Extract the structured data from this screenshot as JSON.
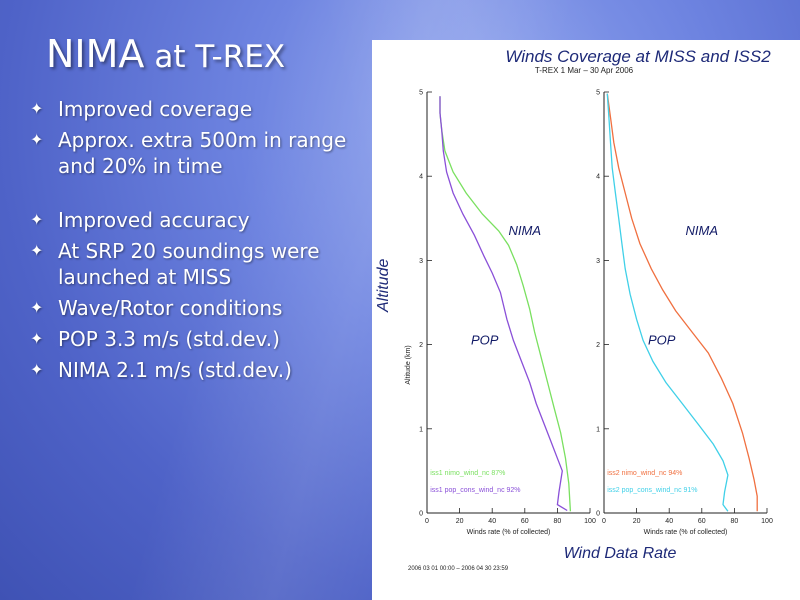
{
  "slide": {
    "title_main": "NIMA",
    "title_sub": "at T-REX",
    "bullets": [
      "Improved coverage",
      "Approx. extra 500m in range and 20% in time",
      "Improved accuracy",
      "At SRP 20 soundings were launched at MISS",
      "Wave/Rotor conditions",
      "POP 3.3 m/s (std.dev.)",
      "NIMA 2.1 m/s  (std.dev.)"
    ],
    "bullet_icon": "four-point-star-icon"
  },
  "chart_data": {
    "type": "line",
    "title": "Winds Coverage at MISS and ISS2",
    "subtitle": "T-REX  1 Mar – 30 Apr 2006",
    "ylabel_big": "Altitude",
    "ylabel_small": "Altitude (km)",
    "xlabel_big": "Wind Data Rate",
    "footer": "2006 03 01 00:00 – 2006 04 30 23:59",
    "panels": [
      {
        "xlabel": "Winds rate (% of collected)",
        "xlim": [
          0,
          100
        ],
        "ylim": [
          0,
          5
        ],
        "xticks": [
          "0",
          "20",
          "40",
          "60",
          "80",
          "100"
        ],
        "yticks": [
          "0",
          "1",
          "2",
          "3",
          "4",
          "5"
        ],
        "annotations": [
          "NIMA",
          "POP"
        ],
        "series": [
          {
            "name": "iss1 nimo_wind_nc  87%",
            "color": "#7ae060",
            "points": [
              [
                8,
                4.95
              ],
              [
                8,
                4.75
              ],
              [
                9,
                4.55
              ],
              [
                11,
                4.3
              ],
              [
                16,
                4.05
              ],
              [
                24,
                3.8
              ],
              [
                34,
                3.55
              ],
              [
                44,
                3.35
              ],
              [
                50,
                3.18
              ],
              [
                55,
                2.95
              ],
              [
                59,
                2.7
              ],
              [
                63,
                2.42
              ],
              [
                66,
                2.15
              ],
              [
                70,
                1.85
              ],
              [
                74,
                1.55
              ],
              [
                78,
                1.25
              ],
              [
                82,
                0.95
              ],
              [
                85,
                0.65
              ],
              [
                87,
                0.35
              ],
              [
                88,
                0.02
              ]
            ]
          },
          {
            "name": "iss1 pop_cons_wind_nc  92%",
            "color": "#8a50d8",
            "points": [
              [
                8,
                4.95
              ],
              [
                8,
                4.75
              ],
              [
                9,
                4.55
              ],
              [
                10,
                4.3
              ],
              [
                12,
                4.05
              ],
              [
                16,
                3.8
              ],
              [
                22,
                3.55
              ],
              [
                29,
                3.3
              ],
              [
                35,
                3.05
              ],
              [
                40,
                2.85
              ],
              [
                45,
                2.62
              ],
              [
                49,
                2.3
              ],
              [
                53,
                2.05
              ],
              [
                58,
                1.8
              ],
              [
                63,
                1.55
              ],
              [
                67,
                1.3
              ],
              [
                72,
                1.05
              ],
              [
                76,
                0.85
              ],
              [
                80,
                0.65
              ],
              [
                83,
                0.5
              ],
              [
                81,
                0.25
              ],
              [
                80,
                0.1
              ],
              [
                86,
                0.03
              ]
            ]
          }
        ]
      },
      {
        "xlabel": "Winds rate (% of collected)",
        "xlim": [
          0,
          100
        ],
        "ylim": [
          0,
          5
        ],
        "xticks": [
          "0",
          "20",
          "40",
          "60",
          "80",
          "100"
        ],
        "yticks": [
          "0",
          "1",
          "2",
          "3",
          "4",
          "5"
        ],
        "annotations": [
          "NIMA",
          "POP"
        ],
        "series": [
          {
            "name": "iss2 nimo_wind_nc  94%",
            "color": "#f07040",
            "points": [
              [
                2,
                4.98
              ],
              [
                4,
                4.7
              ],
              [
                6,
                4.4
              ],
              [
                9,
                4.1
              ],
              [
                13,
                3.8
              ],
              [
                17,
                3.5
              ],
              [
                22,
                3.2
              ],
              [
                29,
                2.9
              ],
              [
                36,
                2.65
              ],
              [
                44,
                2.4
              ],
              [
                54,
                2.15
              ],
              [
                64,
                1.9
              ],
              [
                72,
                1.6
              ],
              [
                79,
                1.3
              ],
              [
                85,
                0.95
              ],
              [
                89,
                0.65
              ],
              [
                92,
                0.4
              ],
              [
                94,
                0.2
              ],
              [
                94,
                0.02
              ]
            ]
          },
          {
            "name": "iss2 pop_cons_wind_nc  91%",
            "color": "#40d0e8",
            "points": [
              [
                2,
                4.98
              ],
              [
                3,
                4.7
              ],
              [
                4,
                4.4
              ],
              [
                5,
                4.1
              ],
              [
                7,
                3.8
              ],
              [
                9,
                3.5
              ],
              [
                11,
                3.2
              ],
              [
                13,
                2.9
              ],
              [
                16,
                2.6
              ],
              [
                20,
                2.3
              ],
              [
                24,
                2.05
              ],
              [
                30,
                1.8
              ],
              [
                38,
                1.55
              ],
              [
                48,
                1.3
              ],
              [
                58,
                1.05
              ],
              [
                67,
                0.82
              ],
              [
                73,
                0.62
              ],
              [
                76,
                0.45
              ],
              [
                74,
                0.25
              ],
              [
                73,
                0.1
              ],
              [
                76,
                0.02
              ]
            ]
          }
        ]
      }
    ]
  }
}
